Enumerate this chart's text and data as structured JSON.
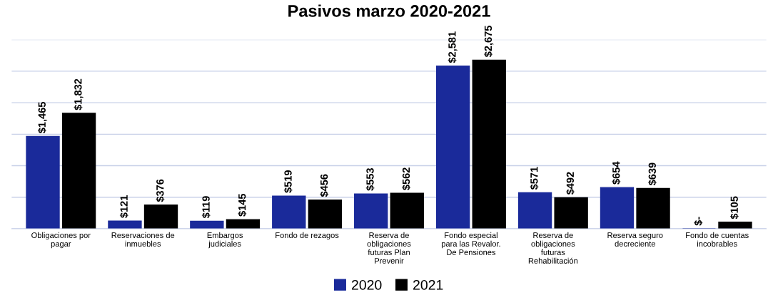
{
  "chart_data": {
    "type": "bar",
    "title": "Pasivos marzo 2020-2021",
    "categories": [
      "Obligaciones por\npagar",
      "Reservaciones de\ninmuebles",
      "Embargos\njudiciales",
      "Fondo de rezagos",
      "Reserva de\nobligaciones\nfuturas Plan\nPrevenir",
      "Fondo especial\npara las Revalor.\nDe Pensiones",
      "Reserva de\nobligaciones\nfuturas\nRehabilitación",
      "Reserva seguro\ndecreciente",
      "Fondo de cuentas\nincobrables"
    ],
    "series": [
      {
        "name": "2020",
        "color": "#1a2a9a",
        "values": [
          1465,
          121,
          119,
          519,
          553,
          2581,
          571,
          654,
          0
        ],
        "value_labels": [
          "$1,465",
          "$121",
          "$119",
          "$519",
          "$553",
          "$2,581",
          "$571",
          "$654",
          "$-"
        ]
      },
      {
        "name": "2021",
        "color": "#000000",
        "values": [
          1832,
          376,
          145,
          456,
          562,
          2675,
          492,
          639,
          105
        ],
        "value_labels": [
          "$1,832",
          "$376",
          "$145",
          "$456",
          "$562",
          "$2,675",
          "$492",
          "$639",
          "$105"
        ]
      }
    ],
    "ylim": [
      0,
      3000
    ],
    "yticks": [
      {
        "value": 0,
        "label": null
      },
      {
        "value": 500,
        "label": null
      },
      {
        "value": 1000,
        "label": null
      },
      {
        "value": 1500,
        "label": null
      },
      {
        "value": 2000,
        "label": null
      },
      {
        "value": 2500,
        "label": null
      },
      {
        "value": 3000,
        "label": null
      }
    ],
    "tick_labels": "x",
    "grid": "y",
    "legend": "bottom"
  }
}
